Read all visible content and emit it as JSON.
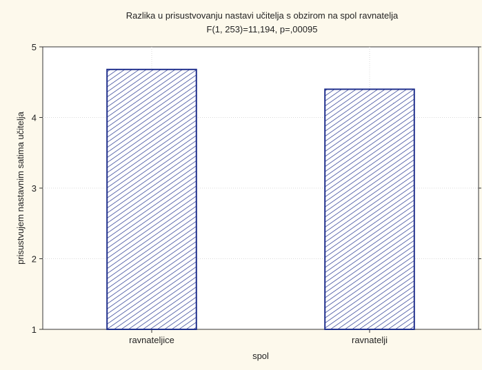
{
  "chart_data": {
    "type": "bar",
    "title": "Razlika u prisustvovanju nastavi učitelja s obzirom na spol ravnatelja",
    "subtitle": "F(1, 253)=11,194, p=,00095",
    "xlabel": "spol",
    "ylabel": "prisustvujem nastavnim satima učitelja",
    "categories": [
      "ravnateljice",
      "ravnatelji"
    ],
    "values": [
      4.68,
      4.4
    ],
    "ylim": [
      1,
      5
    ],
    "yticks": [
      1,
      2,
      3,
      4,
      5
    ],
    "grid": true,
    "colors": {
      "background": "#fdf9ec",
      "plot_background": "#ffffff",
      "bar_stroke": "#1f2f8c",
      "bar_hatch": "#1f2f8c",
      "grid": "#d8d8d8",
      "axis": "#333333"
    }
  }
}
